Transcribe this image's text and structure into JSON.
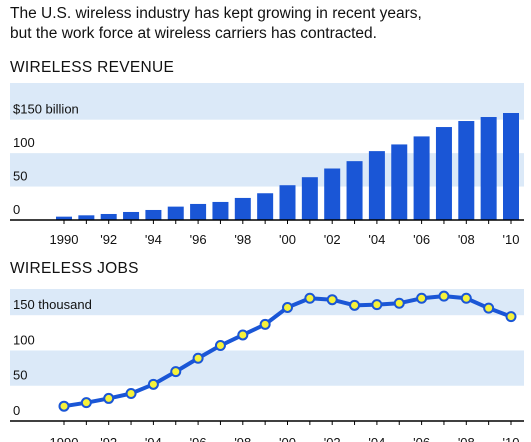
{
  "subtitle": {
    "line1": "The U.S. wireless industry has kept growing in recent years,",
    "line2": "but the work force at wireless carriers has contracted."
  },
  "colors": {
    "band": "#dbe9f8",
    "bar": "#1a56d6",
    "line": "#1a56d6",
    "marker_fill": "#f6f23a",
    "axis": "#000000"
  },
  "chart_data": [
    {
      "type": "bar",
      "title": "WIRELESS REVENUE",
      "unit": "billion",
      "x": [
        1990,
        1991,
        1992,
        1993,
        1994,
        1995,
        1996,
        1997,
        1998,
        1999,
        2000,
        2001,
        2002,
        2003,
        2004,
        2005,
        2006,
        2007,
        2008,
        2009,
        2010
      ],
      "values": [
        5,
        7,
        9,
        12,
        15,
        20,
        24,
        27,
        33,
        40,
        52,
        64,
        77,
        88,
        103,
        113,
        125,
        139,
        148,
        154,
        160
      ],
      "ylim": [
        0,
        160
      ],
      "y_ticks": [
        {
          "value": 0,
          "label": "0"
        },
        {
          "value": 50,
          "label": "50"
        },
        {
          "value": 100,
          "label": "100"
        },
        {
          "value": 150,
          "label": "$150 billion"
        }
      ],
      "x_ticks": [
        {
          "value": 1990,
          "label": "1990"
        },
        {
          "value": 1992,
          "label": "'92"
        },
        {
          "value": 1994,
          "label": "'94"
        },
        {
          "value": 1996,
          "label": "'96"
        },
        {
          "value": 1998,
          "label": "'98"
        },
        {
          "value": 2000,
          "label": "'00"
        },
        {
          "value": 2002,
          "label": "'02"
        },
        {
          "value": 2004,
          "label": "'04"
        },
        {
          "value": 2006,
          "label": "'06"
        },
        {
          "value": 2008,
          "label": "'08"
        },
        {
          "value": 2010,
          "label": "'10"
        }
      ],
      "grid": "alternating horizontal bands"
    },
    {
      "type": "line",
      "title": "WIRELESS JOBS",
      "unit": "thousand",
      "x": [
        1990,
        1991,
        1992,
        1993,
        1994,
        1995,
        1996,
        1997,
        1998,
        1999,
        2000,
        2001,
        2002,
        2003,
        2004,
        2005,
        2006,
        2007,
        2008,
        2009,
        2010
      ],
      "values": [
        21,
        26,
        32,
        39,
        52,
        70,
        89,
        107,
        122,
        137,
        161,
        174,
        172,
        164,
        165,
        167,
        174,
        177,
        174,
        160,
        148
      ],
      "ylim": [
        0,
        190
      ],
      "y_ticks": [
        {
          "value": 0,
          "label": "0"
        },
        {
          "value": 50,
          "label": "50"
        },
        {
          "value": 100,
          "label": "100"
        },
        {
          "value": 150,
          "label": "150 thousand"
        }
      ],
      "x_ticks": [
        {
          "value": 1990,
          "label": "1990"
        },
        {
          "value": 1992,
          "label": "'92"
        },
        {
          "value": 1994,
          "label": "'94"
        },
        {
          "value": 1996,
          "label": "'96"
        },
        {
          "value": 1998,
          "label": "'98"
        },
        {
          "value": 2000,
          "label": "'00"
        },
        {
          "value": 2002,
          "label": "'02"
        },
        {
          "value": 2004,
          "label": "'04"
        },
        {
          "value": 2006,
          "label": "'06"
        },
        {
          "value": 2008,
          "label": "'08"
        },
        {
          "value": 2010,
          "label": "'10"
        }
      ],
      "grid": "alternating horizontal bands",
      "markers": "circle"
    }
  ]
}
